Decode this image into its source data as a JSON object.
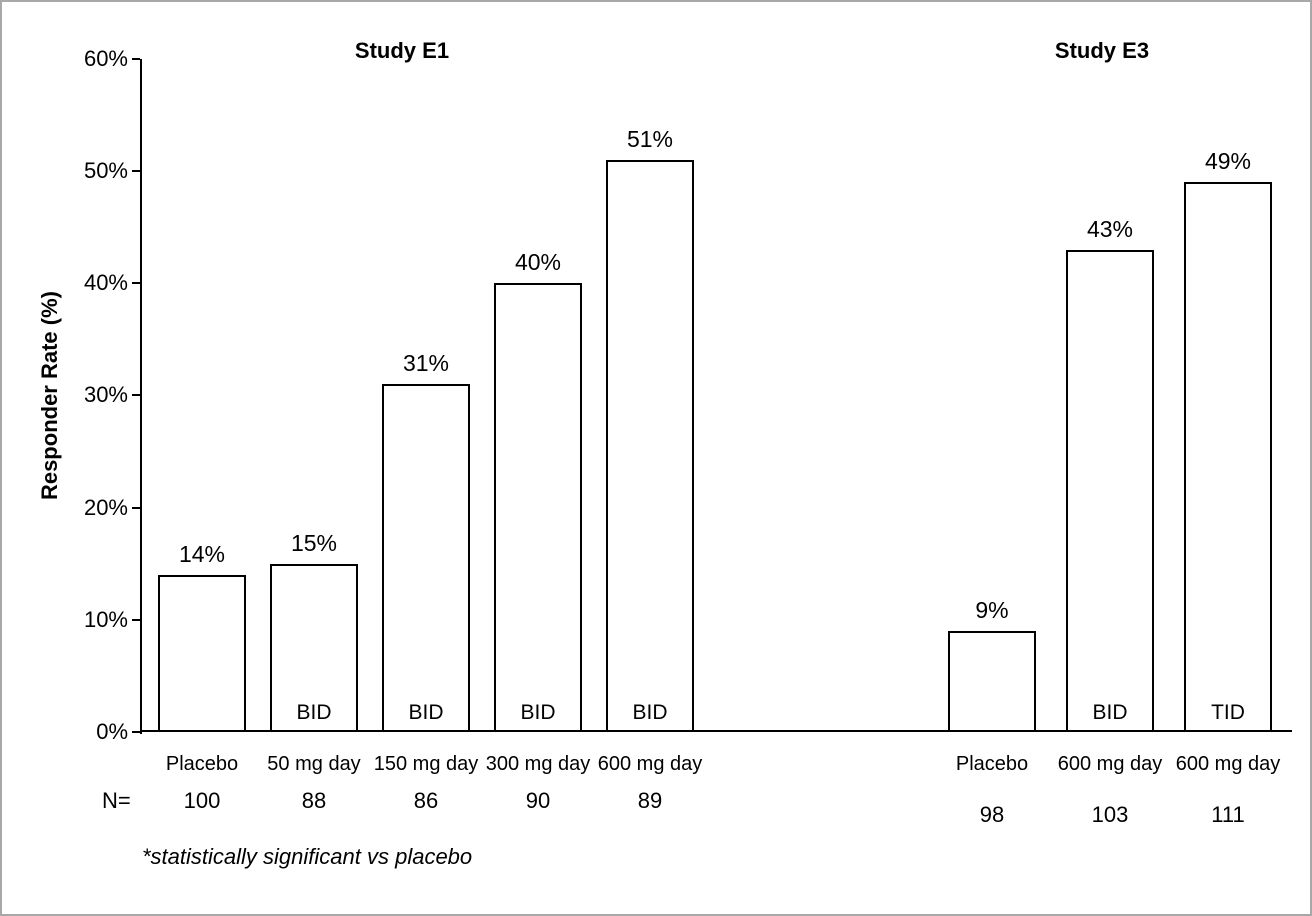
{
  "chart_data": {
    "type": "bar",
    "title_left": "Study E1",
    "title_right": "Study E3",
    "ylabel": "Responder Rate (%)",
    "ylim": [
      0,
      60
    ],
    "yticks": [
      "0%",
      "10%",
      "20%",
      "30%",
      "40%",
      "50%",
      "60%"
    ],
    "n_label": "N=",
    "footnote": "*statistically significant vs placebo",
    "legend": "none",
    "grid": "off",
    "bar_fill": "#ffffff",
    "bar_border": "#000000",
    "groups": [
      {
        "name": "Study E1",
        "bars": [
          {
            "category": "Placebo",
            "value": 14,
            "label": "14%",
            "dose_label": "",
            "n": "100"
          },
          {
            "category": "50 mg day",
            "value": 15,
            "label": "15%",
            "dose_label": "BID",
            "n": "88"
          },
          {
            "category": "150 mg day",
            "value": 31,
            "label": "31%",
            "dose_label": "BID",
            "n": "86"
          },
          {
            "category": "300 mg day",
            "value": 40,
            "label": "40%",
            "dose_label": "BID",
            "n": "90"
          },
          {
            "category": "600 mg day",
            "value": 51,
            "label": "51%",
            "dose_label": "BID",
            "n": "89"
          }
        ]
      },
      {
        "name": "Study E3",
        "bars": [
          {
            "category": "Placebo",
            "value": 9,
            "label": "9%",
            "dose_label": "",
            "n": "98"
          },
          {
            "category": "600 mg day",
            "value": 43,
            "label": "43%",
            "dose_label": "BID",
            "n": "103"
          },
          {
            "category": "600 mg day",
            "value": 49,
            "label": "49%",
            "dose_label": "TID",
            "n": "111"
          }
        ]
      }
    ]
  }
}
